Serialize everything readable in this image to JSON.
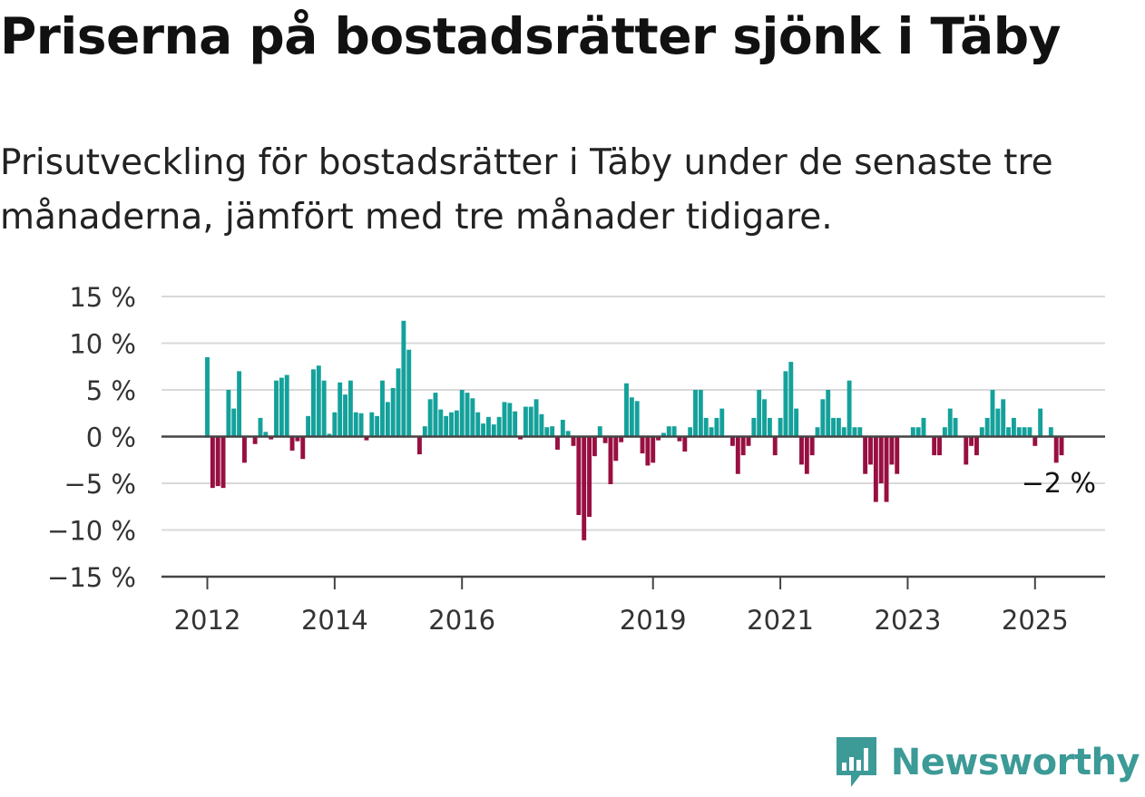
{
  "title": "Priserna på bostadsrätter sjönk i Täby",
  "subtitle": "Prisutveckling för bostadsrätter i Täby under de senaste tre månaderna, jämfört med tre månader tidigare.",
  "logo": {
    "text": "Newsworthy",
    "icon": "newsworthy-chart-bubble-icon",
    "color": "#3c9a97"
  },
  "colors": {
    "positive": "#14a19b",
    "negative": "#980f41",
    "grid": "#d9d9d9",
    "axis": "#444444"
  },
  "chart_data": {
    "type": "bar",
    "title": "",
    "xlabel": "",
    "ylabel": "",
    "ylim": [
      -15,
      15
    ],
    "yticks": [
      15,
      10,
      5,
      0,
      -5,
      -10,
      -15
    ],
    "ytick_labels": [
      "15 %",
      "10 %",
      "5 %",
      "0 %",
      "−5 %",
      "−10 %",
      "−15 %"
    ],
    "xticks": [
      {
        "label": "2012",
        "date": "2012-01"
      },
      {
        "label": "2014",
        "date": "2014-01"
      },
      {
        "label": "2016",
        "date": "2016-01"
      },
      {
        "label": "2019",
        "date": "2019-01"
      },
      {
        "label": "2021",
        "date": "2021-01"
      },
      {
        "label": "2023",
        "date": "2023-01"
      },
      {
        "label": "2025",
        "date": "2025-01"
      }
    ],
    "grid": true,
    "last_value_label": "−2 %",
    "series": [
      {
        "unit": "%",
        "points": [
          [
            "2012-01",
            8.5
          ],
          [
            "2012-02",
            -5.5
          ],
          [
            "2012-03",
            -5.3
          ],
          [
            "2012-04",
            -5.5
          ],
          [
            "2012-05",
            5.0
          ],
          [
            "2012-06",
            3.0
          ],
          [
            "2012-07",
            7.0
          ],
          [
            "2012-08",
            -2.8
          ],
          [
            "2012-09",
            0.0
          ],
          [
            "2012-10",
            -0.8
          ],
          [
            "2012-11",
            2.0
          ],
          [
            "2012-12",
            0.5
          ],
          [
            "2013-01",
            -0.3
          ],
          [
            "2013-02",
            6.0
          ],
          [
            "2013-03",
            6.3
          ],
          [
            "2013-04",
            6.6
          ],
          [
            "2013-05",
            -1.5
          ],
          [
            "2013-06",
            -0.5
          ],
          [
            "2013-07",
            -2.4
          ],
          [
            "2013-08",
            2.2
          ],
          [
            "2013-09",
            7.2
          ],
          [
            "2013-10",
            7.6
          ],
          [
            "2013-11",
            6.0
          ],
          [
            "2013-12",
            0.3
          ],
          [
            "2014-01",
            2.6
          ],
          [
            "2014-02",
            5.8
          ],
          [
            "2014-03",
            4.5
          ],
          [
            "2014-04",
            6.0
          ],
          [
            "2014-05",
            2.6
          ],
          [
            "2014-06",
            2.5
          ],
          [
            "2014-07",
            -0.4
          ],
          [
            "2014-08",
            2.6
          ],
          [
            "2014-09",
            2.2
          ],
          [
            "2014-10",
            6.0
          ],
          [
            "2014-11",
            3.7
          ],
          [
            "2014-12",
            5.2
          ],
          [
            "2015-01",
            7.3
          ],
          [
            "2015-02",
            12.4
          ],
          [
            "2015-03",
            9.3
          ],
          [
            "2015-04",
            0.0
          ],
          [
            "2015-05",
            -1.9
          ],
          [
            "2015-06",
            1.1
          ],
          [
            "2015-07",
            4.0
          ],
          [
            "2015-08",
            4.7
          ],
          [
            "2015-09",
            2.9
          ],
          [
            "2015-10",
            2.2
          ],
          [
            "2015-11",
            2.6
          ],
          [
            "2015-12",
            2.8
          ],
          [
            "2016-01",
            5.0
          ],
          [
            "2016-02",
            4.7
          ],
          [
            "2016-03",
            4.1
          ],
          [
            "2016-04",
            2.6
          ],
          [
            "2016-05",
            1.4
          ],
          [
            "2016-06",
            2.1
          ],
          [
            "2016-07",
            1.3
          ],
          [
            "2016-08",
            2.1
          ],
          [
            "2016-09",
            3.7
          ],
          [
            "2016-10",
            3.6
          ],
          [
            "2016-11",
            2.7
          ],
          [
            "2016-12",
            -0.3
          ],
          [
            "2017-01",
            3.2
          ],
          [
            "2017-02",
            3.2
          ],
          [
            "2017-03",
            4.0
          ],
          [
            "2017-04",
            2.4
          ],
          [
            "2017-05",
            1.0
          ],
          [
            "2017-06",
            1.1
          ],
          [
            "2017-07",
            -1.4
          ],
          [
            "2017-08",
            1.8
          ],
          [
            "2017-09",
            0.6
          ],
          [
            "2017-10",
            -1.0
          ],
          [
            "2017-11",
            -8.4
          ],
          [
            "2017-12",
            -11.1
          ],
          [
            "2018-01",
            -8.6
          ],
          [
            "2018-02",
            -2.1
          ],
          [
            "2018-03",
            1.1
          ],
          [
            "2018-04",
            -0.7
          ],
          [
            "2018-05",
            -5.1
          ],
          [
            "2018-06",
            -2.6
          ],
          [
            "2018-07",
            -0.6
          ],
          [
            "2018-08",
            5.7
          ],
          [
            "2018-09",
            4.2
          ],
          [
            "2018-10",
            3.8
          ],
          [
            "2018-11",
            -1.8
          ],
          [
            "2018-12",
            -3.1
          ],
          [
            "2019-01",
            -2.8
          ],
          [
            "2019-02",
            -0.4
          ],
          [
            "2019-03",
            0.4
          ],
          [
            "2019-04",
            1.1
          ],
          [
            "2019-05",
            1.1
          ],
          [
            "2019-06",
            -0.5
          ],
          [
            "2019-07",
            -1.6
          ],
          [
            "2019-08",
            1.0
          ],
          [
            "2019-09",
            5.0
          ],
          [
            "2019-10",
            5.0
          ],
          [
            "2019-11",
            2.0
          ],
          [
            "2019-12",
            1.0
          ],
          [
            "2020-01",
            2.0
          ],
          [
            "2020-02",
            3.0
          ],
          [
            "2020-03",
            0.0
          ],
          [
            "2020-04",
            -1.0
          ],
          [
            "2020-05",
            -4.0
          ],
          [
            "2020-06",
            -2.0
          ],
          [
            "2020-07",
            -1.0
          ],
          [
            "2020-08",
            2.0
          ],
          [
            "2020-09",
            5.0
          ],
          [
            "2020-10",
            4.0
          ],
          [
            "2020-11",
            2.0
          ],
          [
            "2020-12",
            -2.0
          ],
          [
            "2021-01",
            2.0
          ],
          [
            "2021-02",
            7.0
          ],
          [
            "2021-03",
            8.0
          ],
          [
            "2021-04",
            3.0
          ],
          [
            "2021-05",
            -3.0
          ],
          [
            "2021-06",
            -4.0
          ],
          [
            "2021-07",
            -2.0
          ],
          [
            "2021-08",
            1.0
          ],
          [
            "2021-09",
            4.0
          ],
          [
            "2021-10",
            5.0
          ],
          [
            "2021-11",
            2.0
          ],
          [
            "2021-12",
            2.0
          ],
          [
            "2022-01",
            1.0
          ],
          [
            "2022-02",
            6.0
          ],
          [
            "2022-03",
            1.0
          ],
          [
            "2022-04",
            1.0
          ],
          [
            "2022-05",
            -4.0
          ],
          [
            "2022-06",
            -3.0
          ],
          [
            "2022-07",
            -7.0
          ],
          [
            "2022-08",
            -5.0
          ],
          [
            "2022-09",
            -7.0
          ],
          [
            "2022-10",
            -3.0
          ],
          [
            "2022-11",
            -4.0
          ],
          [
            "2022-12",
            0.0
          ],
          [
            "2023-01",
            0.0
          ],
          [
            "2023-02",
            1.0
          ],
          [
            "2023-03",
            1.0
          ],
          [
            "2023-04",
            2.0
          ],
          [
            "2023-05",
            0.0
          ],
          [
            "2023-06",
            -2.0
          ],
          [
            "2023-07",
            -2.0
          ],
          [
            "2023-08",
            1.0
          ],
          [
            "2023-09",
            3.0
          ],
          [
            "2023-10",
            2.0
          ],
          [
            "2023-11",
            0.0
          ],
          [
            "2023-12",
            -3.0
          ],
          [
            "2024-01",
            -1.0
          ],
          [
            "2024-02",
            -2.0
          ],
          [
            "2024-03",
            1.0
          ],
          [
            "2024-04",
            2.0
          ],
          [
            "2024-05",
            5.0
          ],
          [
            "2024-06",
            3.0
          ],
          [
            "2024-07",
            4.0
          ],
          [
            "2024-08",
            1.0
          ],
          [
            "2024-09",
            2.0
          ],
          [
            "2024-10",
            1.0
          ],
          [
            "2024-11",
            1.0
          ],
          [
            "2024-12",
            1.0
          ],
          [
            "2025-01",
            -1.0
          ],
          [
            "2025-02",
            3.0
          ],
          [
            "2025-03",
            0.0
          ],
          [
            "2025-04",
            1.0
          ],
          [
            "2025-05",
            -2.8
          ],
          [
            "2025-06",
            -2.0
          ]
        ]
      }
    ]
  }
}
